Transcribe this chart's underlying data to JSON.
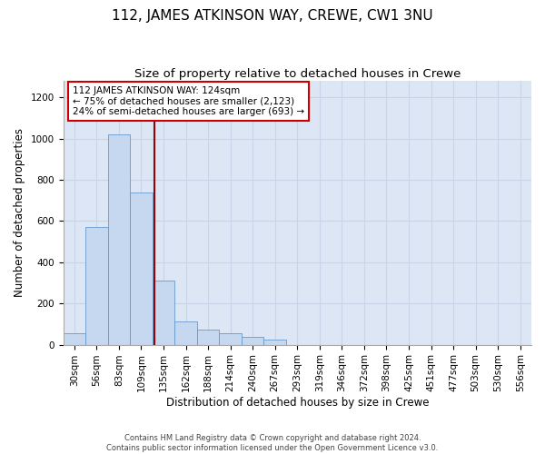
{
  "title": "112, JAMES ATKINSON WAY, CREWE, CW1 3NU",
  "subtitle": "Size of property relative to detached houses in Crewe",
  "xlabel": "Distribution of detached houses by size in Crewe",
  "ylabel": "Number of detached properties",
  "footer_line1": "Contains HM Land Registry data © Crown copyright and database right 2024.",
  "footer_line2": "Contains public sector information licensed under the Open Government Licence v3.0.",
  "bin_labels": [
    "30sqm",
    "56sqm",
    "83sqm",
    "109sqm",
    "135sqm",
    "162sqm",
    "188sqm",
    "214sqm",
    "240sqm",
    "267sqm",
    "293sqm",
    "319sqm",
    "346sqm",
    "372sqm",
    "398sqm",
    "425sqm",
    "451sqm",
    "477sqm",
    "503sqm",
    "530sqm",
    "556sqm"
  ],
  "bar_values": [
    55,
    570,
    1020,
    740,
    310,
    115,
    75,
    55,
    40,
    25,
    0,
    0,
    0,
    0,
    0,
    0,
    0,
    0,
    0,
    0,
    0
  ],
  "bar_color": "#c5d8ef",
  "bar_edge_color": "#6699cc",
  "grid_color": "#c8d4e8",
  "background_color": "#dce6f5",
  "vline_color": "#990000",
  "annotation_text": "112 JAMES ATKINSON WAY: 124sqm\n← 75% of detached houses are smaller (2,123)\n24% of semi-detached houses are larger (693) →",
  "annotation_box_color": "#ffffff",
  "annotation_box_edge_color": "#cc0000",
  "ylim": [
    0,
    1280
  ],
  "yticks": [
    0,
    200,
    400,
    600,
    800,
    1000,
    1200
  ],
  "title_fontsize": 11,
  "subtitle_fontsize": 9.5,
  "axis_label_fontsize": 8.5,
  "tick_fontsize": 7.5,
  "annotation_fontsize": 7.5,
  "vline_position": 3.58
}
